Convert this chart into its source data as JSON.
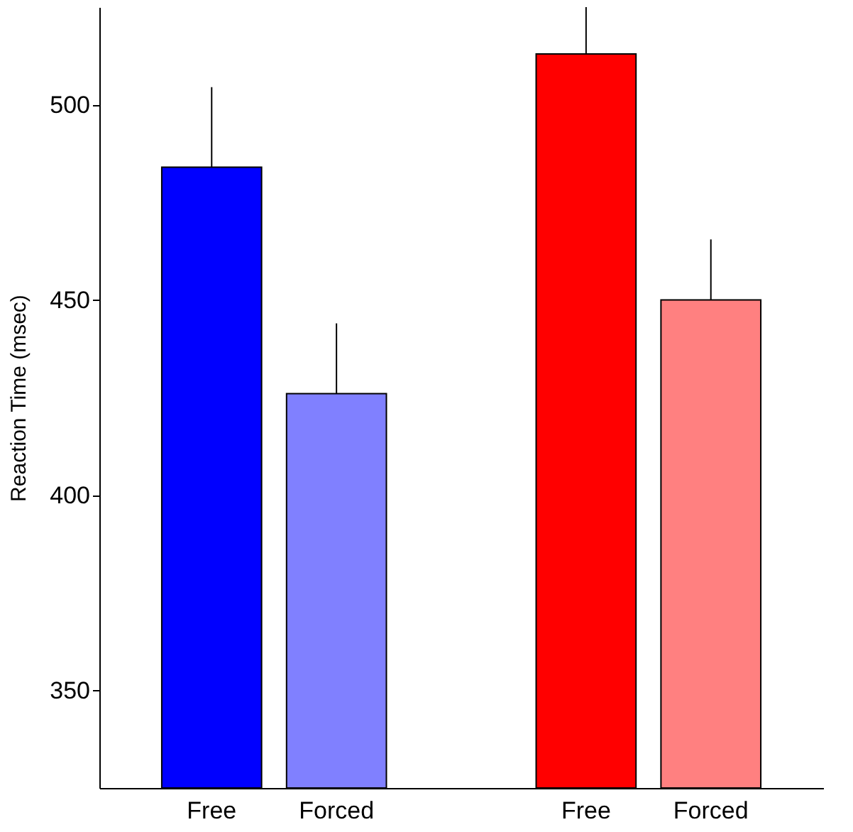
{
  "chart_data": {
    "type": "bar",
    "ylabel": "Reaction Time (msec)",
    "categories": [
      "Free",
      "Forced",
      null,
      "Free",
      "Forced"
    ],
    "values": [
      484,
      426,
      null,
      513,
      450
    ],
    "colors": [
      "#0000ff",
      "#8080ff",
      null,
      "#ff0000",
      "#ff8080"
    ],
    "errors": [
      [
        484,
        504.5
      ],
      [
        426,
        444
      ],
      null,
      [
        513,
        525
      ],
      [
        450,
        465.5
      ]
    ],
    "ylim": [
      325,
      525
    ],
    "yticks": [
      350,
      400,
      450,
      500
    ],
    "grid": false
  }
}
